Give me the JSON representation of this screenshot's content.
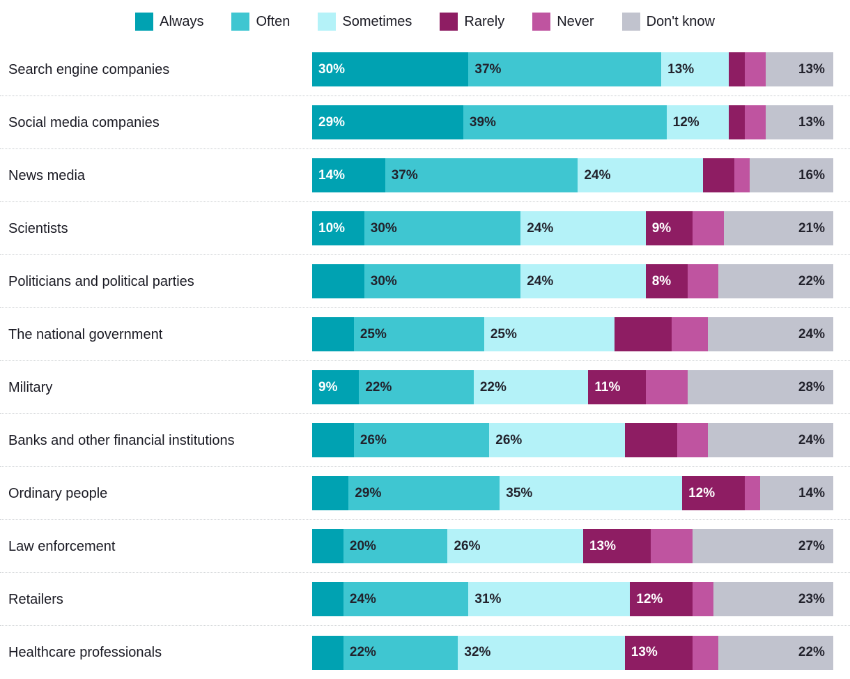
{
  "chart_data": {
    "type": "bar",
    "orientation": "horizontal",
    "stacked": true,
    "unit": "%",
    "xlim": [
      0,
      100
    ],
    "grid": false,
    "legend_position": "top",
    "legend": [
      {
        "name": "Always",
        "color": "#00a2b2",
        "text_color": "#ffffff"
      },
      {
        "name": "Often",
        "color": "#3fc6d1",
        "text_color": "#22222c"
      },
      {
        "name": "Sometimes",
        "color": "#b4f2f8",
        "text_color": "#22222c"
      },
      {
        "name": "Rarely",
        "color": "#8e1d63",
        "text_color": "#ffffff"
      },
      {
        "name": "Never",
        "color": "#bf54a0",
        "text_color": "#22222c"
      },
      {
        "name": "Don't know",
        "color": "#c1c3ce",
        "text_color": "#22222c"
      }
    ],
    "rows": [
      {
        "category": "Search engine companies",
        "values": [
          30,
          37,
          13,
          3,
          4,
          13
        ],
        "labels": [
          "30%",
          "37%",
          "13%",
          null,
          null,
          "13%"
        ]
      },
      {
        "category": "Social media companies",
        "values": [
          29,
          39,
          12,
          3,
          4,
          13
        ],
        "labels": [
          "29%",
          "39%",
          "12%",
          null,
          null,
          "13%"
        ]
      },
      {
        "category": "News media",
        "values": [
          14,
          37,
          24,
          6,
          3,
          16
        ],
        "labels": [
          "14%",
          "37%",
          "24%",
          null,
          null,
          "16%"
        ]
      },
      {
        "category": "Scientists",
        "values": [
          10,
          30,
          24,
          9,
          6,
          21
        ],
        "labels": [
          "10%",
          "30%",
          "24%",
          "9%",
          null,
          "21%"
        ]
      },
      {
        "category": "Politicians and political parties",
        "values": [
          10,
          30,
          24,
          8,
          6,
          22
        ],
        "labels": [
          null,
          "30%",
          "24%",
          "8%",
          null,
          "22%"
        ]
      },
      {
        "category": "The national government",
        "values": [
          8,
          25,
          25,
          11,
          7,
          24
        ],
        "labels": [
          null,
          "25%",
          "25%",
          null,
          null,
          "24%"
        ]
      },
      {
        "category": "Military",
        "values": [
          9,
          22,
          22,
          11,
          8,
          28
        ],
        "labels": [
          "9%",
          "22%",
          "22%",
          "11%",
          null,
          "28%"
        ]
      },
      {
        "category": "Banks and other financial institutions",
        "values": [
          8,
          26,
          26,
          10,
          6,
          24
        ],
        "labels": [
          null,
          "26%",
          "26%",
          null,
          null,
          "24%"
        ]
      },
      {
        "category": "Ordinary people",
        "values": [
          7,
          29,
          35,
          12,
          3,
          14
        ],
        "labels": [
          null,
          "29%",
          "35%",
          "12%",
          null,
          "14%"
        ]
      },
      {
        "category": "Law enforcement",
        "values": [
          6,
          20,
          26,
          13,
          8,
          27
        ],
        "labels": [
          null,
          "20%",
          "26%",
          "13%",
          null,
          "27%"
        ]
      },
      {
        "category": "Retailers",
        "values": [
          6,
          24,
          31,
          12,
          4,
          23
        ],
        "labels": [
          null,
          "24%",
          "31%",
          "12%",
          null,
          "23%"
        ]
      },
      {
        "category": "Healthcare professionals",
        "values": [
          6,
          22,
          32,
          13,
          5,
          22
        ],
        "labels": [
          null,
          "22%",
          "32%",
          "13%",
          null,
          "22%"
        ]
      }
    ]
  }
}
